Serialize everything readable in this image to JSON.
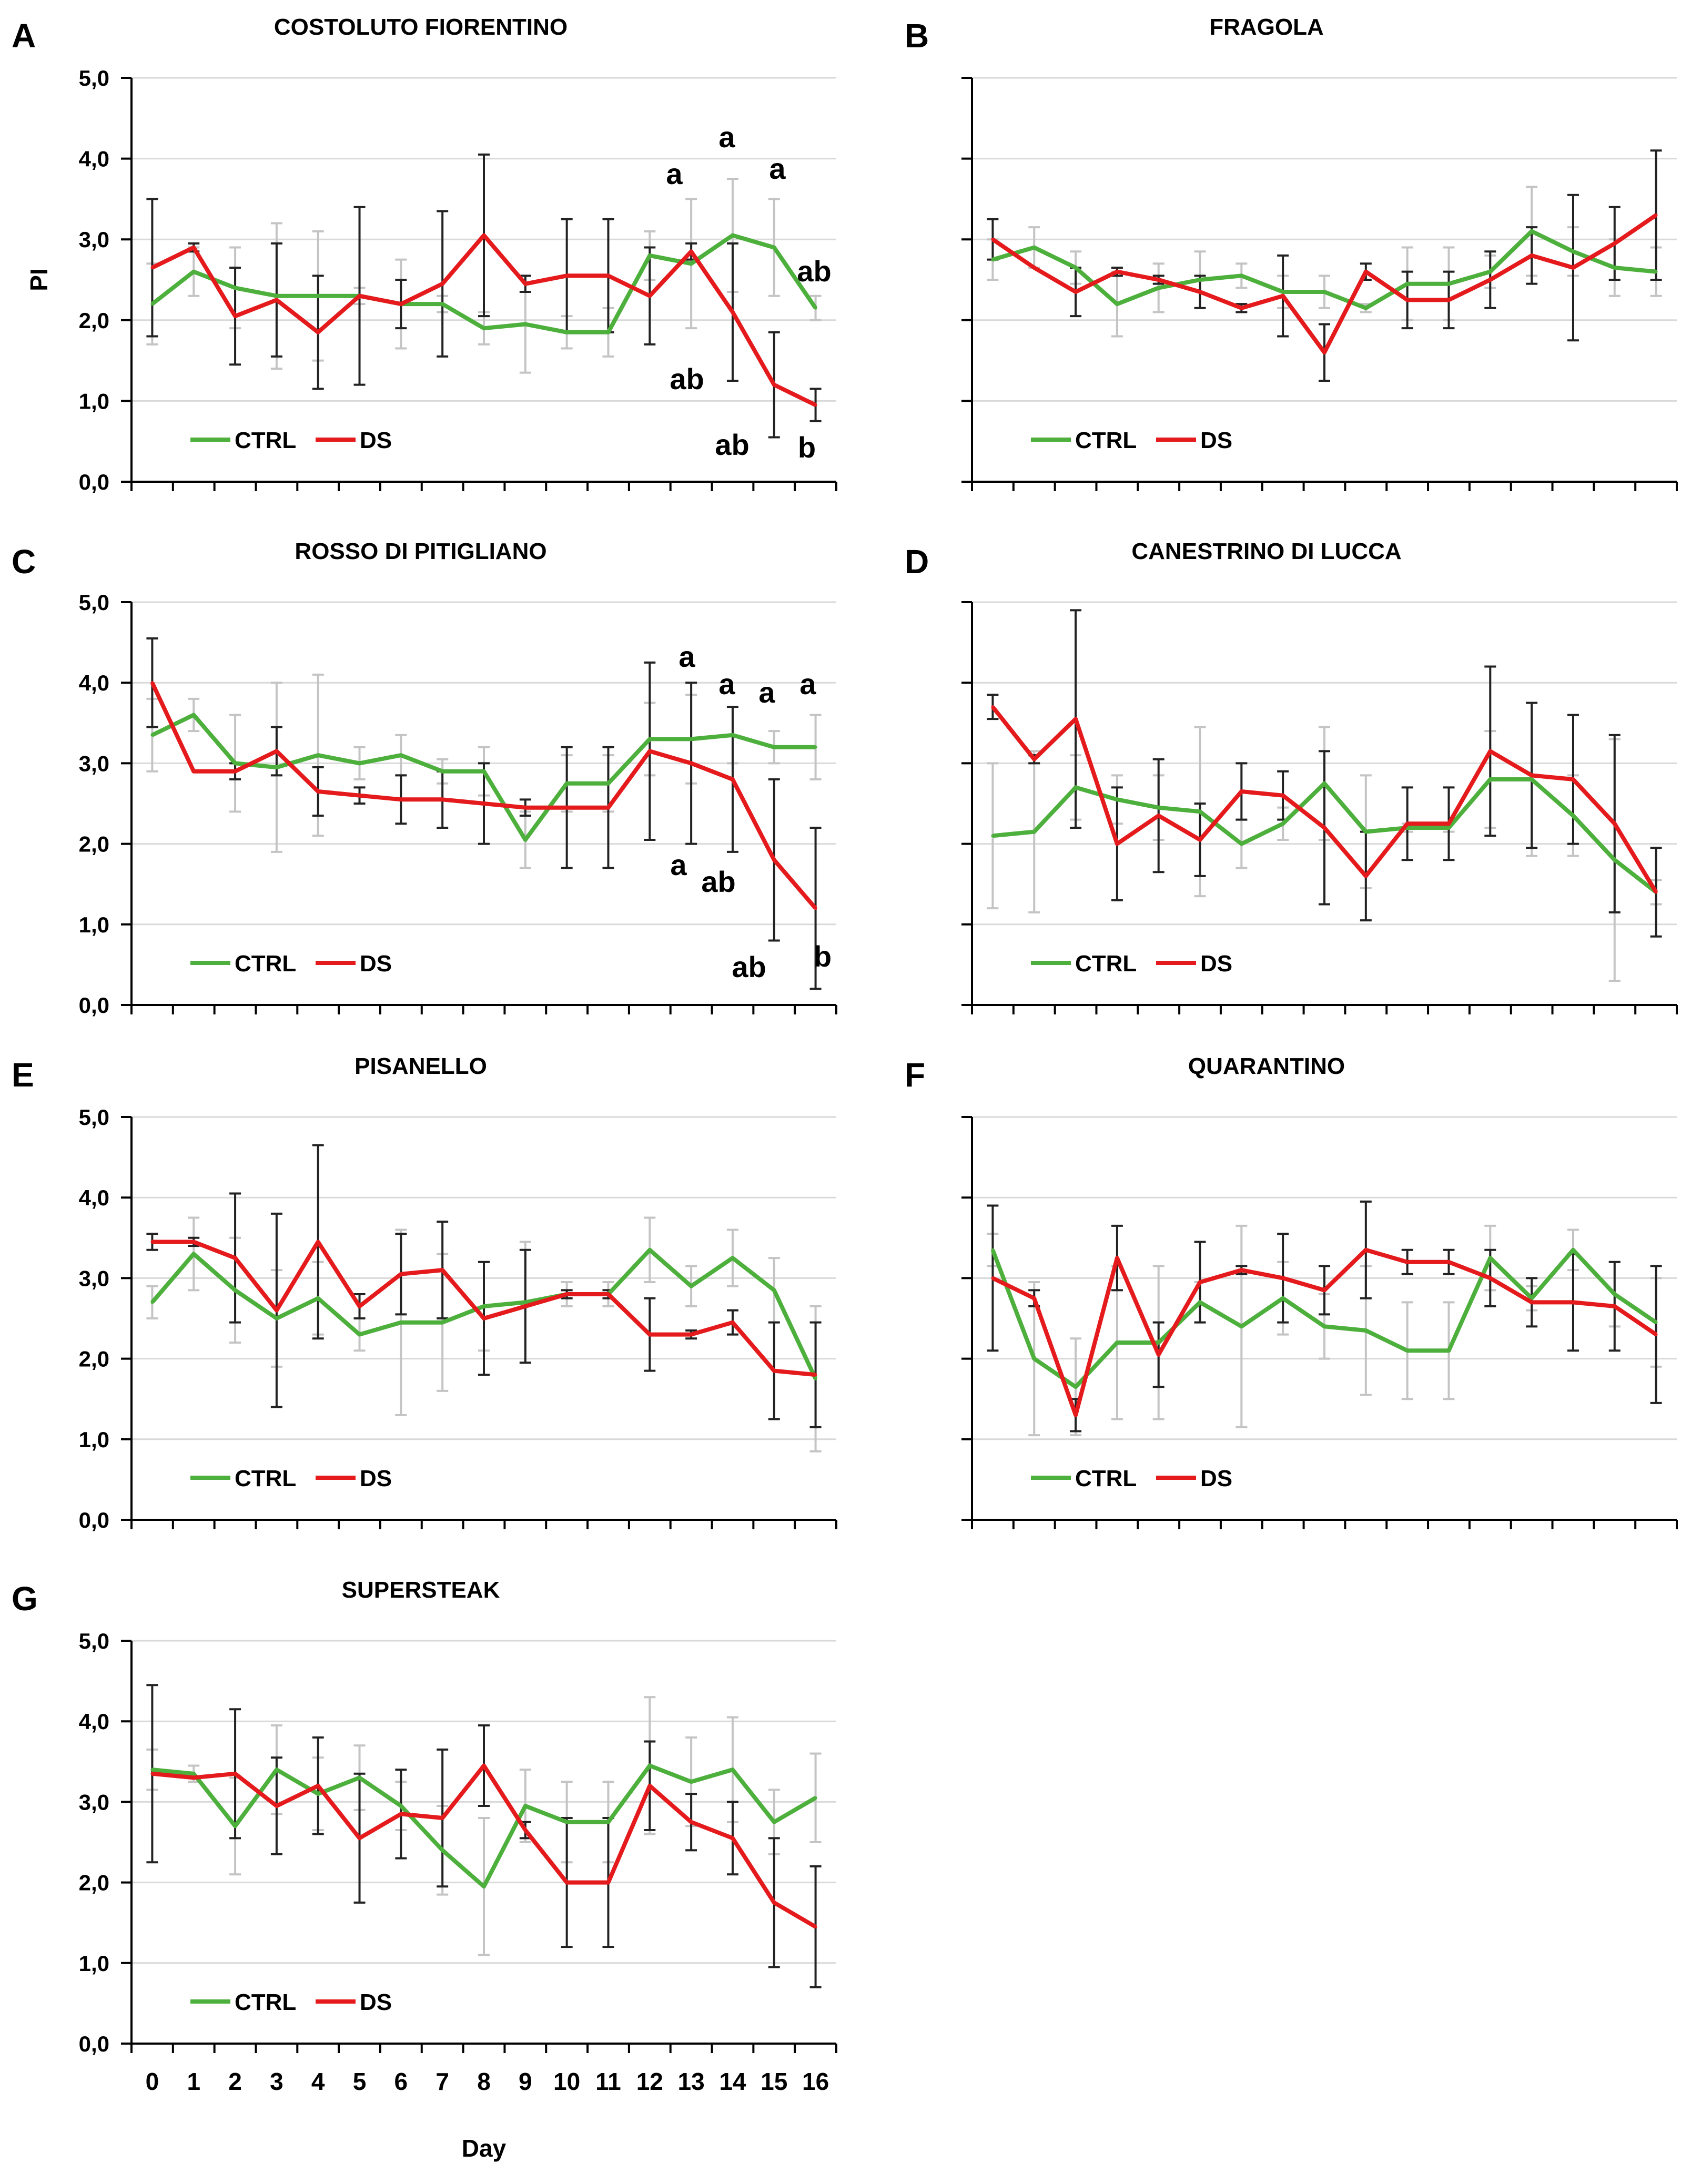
{
  "colors": {
    "ctrl": "#4daf3c",
    "ds": "#e41a1c",
    "ctrl_error": "#c4c4c4",
    "ds_error": "#222222",
    "grid": "#d9d9d9",
    "axis": "#000000"
  },
  "chart_data": [
    {
      "panel": "A",
      "title": "COSTOLUTO FIORENTINO",
      "type": "line",
      "ylabel": "PI",
      "xlabel": "",
      "ylim": [
        0,
        5
      ],
      "y_ticks": [
        "0,0",
        "1,0",
        "2,0",
        "3,0",
        "4,0",
        "5,0"
      ],
      "show_y_tick_labels": true,
      "show_x_tick_labels": false,
      "x": [
        0,
        1,
        2,
        3,
        4,
        5,
        6,
        7,
        8,
        9,
        10,
        11,
        12,
        13,
        14,
        15,
        16
      ],
      "series": [
        {
          "name": "CTRL",
          "values": [
            2.2,
            2.6,
            2.4,
            2.3,
            2.3,
            2.3,
            2.2,
            2.2,
            1.9,
            1.95,
            1.85,
            1.85,
            2.8,
            2.7,
            3.05,
            2.9,
            2.15
          ],
          "errors": [
            0.5,
            0.3,
            0.5,
            0.9,
            0.8,
            0.1,
            0.55,
            0.1,
            0.2,
            0.6,
            0.2,
            0.3,
            0.3,
            0.8,
            0.7,
            0.6,
            0.15
          ]
        },
        {
          "name": "DS",
          "values": [
            2.65,
            2.9,
            2.05,
            2.25,
            1.85,
            2.3,
            2.2,
            2.45,
            3.05,
            2.45,
            2.55,
            2.55,
            2.3,
            2.85,
            2.1,
            1.2,
            0.95
          ],
          "errors": [
            0.85,
            0.05,
            0.6,
            0.7,
            0.7,
            1.1,
            0.3,
            0.9,
            1.0,
            0.1,
            0.7,
            0.7,
            0.6,
            0.1,
            0.85,
            0.65,
            0.2
          ]
        }
      ],
      "legend": [
        "CTRL",
        "DS"
      ],
      "legend_position": "bottom-left",
      "annotations": [
        "a",
        "a",
        "a",
        "ab",
        "ab",
        "ab",
        "b"
      ]
    },
    {
      "panel": "B",
      "title": "FRAGOLA",
      "type": "line",
      "ylabel": "",
      "xlabel": "",
      "ylim": [
        0,
        5
      ],
      "y_ticks": [],
      "show_y_tick_labels": false,
      "show_x_tick_labels": false,
      "x": [
        0,
        1,
        2,
        3,
        4,
        5,
        6,
        7,
        8,
        9,
        10,
        11,
        12,
        13,
        14,
        15,
        16
      ],
      "series": [
        {
          "name": "CTRL",
          "values": [
            2.75,
            2.9,
            2.65,
            2.2,
            2.4,
            2.5,
            2.55,
            2.35,
            2.35,
            2.15,
            2.45,
            2.45,
            2.6,
            3.1,
            2.85,
            2.65,
            2.6
          ],
          "errors": [
            0.25,
            0.25,
            0.2,
            0.4,
            0.3,
            0.35,
            0.15,
            0.2,
            0.2,
            0.05,
            0.45,
            0.45,
            0.2,
            0.55,
            0.3,
            0.35,
            0.3
          ]
        },
        {
          "name": "DS",
          "values": [
            3.0,
            2.65,
            2.35,
            2.6,
            2.5,
            2.35,
            2.15,
            2.3,
            1.6,
            2.6,
            2.25,
            2.25,
            2.5,
            2.8,
            2.65,
            2.95,
            3.3
          ],
          "errors": [
            0.25,
            0.0,
            0.3,
            0.05,
            0.05,
            0.2,
            0.05,
            0.5,
            0.35,
            0.1,
            0.35,
            0.35,
            0.35,
            0.35,
            0.9,
            0.45,
            0.8
          ]
        }
      ],
      "legend": [
        "CTRL",
        "DS"
      ],
      "legend_position": "bottom-left",
      "annotations": []
    },
    {
      "panel": "C",
      "title": "ROSSO DI PITIGLIANO",
      "type": "line",
      "ylabel": "",
      "xlabel": "",
      "ylim": [
        0,
        5
      ],
      "y_ticks": [
        "0,0",
        "1,0",
        "2,0",
        "3,0",
        "4,0",
        "5,0"
      ],
      "show_y_tick_labels": true,
      "show_x_tick_labels": false,
      "x": [
        0,
        1,
        2,
        3,
        4,
        5,
        6,
        7,
        8,
        9,
        10,
        11,
        12,
        13,
        14,
        15,
        16
      ],
      "series": [
        {
          "name": "CTRL",
          "values": [
            3.35,
            3.6,
            3.0,
            2.95,
            3.1,
            3.0,
            3.1,
            2.9,
            2.9,
            2.05,
            2.75,
            2.75,
            3.3,
            3.3,
            3.35,
            3.2,
            3.2
          ],
          "errors": [
            0.45,
            0.2,
            0.6,
            1.05,
            1.0,
            0.2,
            0.25,
            0.15,
            0.3,
            0.35,
            0.35,
            0.35,
            0.45,
            0.55,
            0.35,
            0.2,
            0.4
          ]
        },
        {
          "name": "DS",
          "values": [
            4.0,
            2.9,
            2.9,
            3.15,
            2.65,
            2.6,
            2.55,
            2.55,
            2.5,
            2.45,
            2.45,
            2.45,
            3.15,
            3.0,
            2.8,
            1.8,
            1.2
          ],
          "errors": [
            0.55,
            0.0,
            0.1,
            0.3,
            0.3,
            0.1,
            0.3,
            0.35,
            0.5,
            0.1,
            0.75,
            0.75,
            1.1,
            1.0,
            0.9,
            1.0,
            1.0
          ]
        }
      ],
      "legend": [
        "CTRL",
        "DS"
      ],
      "legend_position": "bottom-left",
      "annotations": [
        "a",
        "a",
        "a",
        "a",
        "a",
        "ab",
        "ab",
        "b"
      ]
    },
    {
      "panel": "D",
      "title": "CANESTRINO DI LUCCA",
      "type": "line",
      "ylabel": "",
      "xlabel": "",
      "ylim": [
        0,
        5
      ],
      "y_ticks": [],
      "show_y_tick_labels": false,
      "show_x_tick_labels": false,
      "x": [
        0,
        1,
        2,
        3,
        4,
        5,
        6,
        7,
        8,
        9,
        10,
        11,
        12,
        13,
        14,
        15,
        16
      ],
      "series": [
        {
          "name": "CTRL",
          "values": [
            2.1,
            2.15,
            2.7,
            2.55,
            2.45,
            2.4,
            2.0,
            2.25,
            2.75,
            2.15,
            2.2,
            2.2,
            2.8,
            2.8,
            2.35,
            1.8,
            1.4
          ],
          "errors": [
            0.9,
            1.0,
            0.4,
            0.3,
            0.4,
            1.05,
            0.3,
            0.2,
            0.7,
            0.7,
            0.05,
            0.05,
            0.6,
            0.95,
            0.5,
            1.5,
            0.15
          ]
        },
        {
          "name": "DS",
          "values": [
            3.7,
            3.05,
            3.55,
            2.0,
            2.35,
            2.05,
            2.65,
            2.6,
            2.2,
            1.6,
            2.25,
            2.25,
            3.15,
            2.85,
            2.8,
            2.25,
            1.4
          ],
          "errors": [
            0.15,
            0.05,
            1.35,
            0.7,
            0.7,
            0.45,
            0.35,
            0.3,
            0.95,
            0.55,
            0.45,
            0.45,
            1.05,
            0.9,
            0.8,
            1.1,
            0.55
          ]
        }
      ],
      "legend": [
        "CTRL",
        "DS"
      ],
      "legend_position": "bottom-left",
      "annotations": []
    },
    {
      "panel": "E",
      "title": "PISANELLO",
      "type": "line",
      "ylabel": "",
      "xlabel": "",
      "ylim": [
        0,
        5
      ],
      "y_ticks": [
        "0,0",
        "1,0",
        "2,0",
        "3,0",
        "4,0",
        "5,0"
      ],
      "show_y_tick_labels": true,
      "show_x_tick_labels": false,
      "x": [
        0,
        1,
        2,
        3,
        4,
        5,
        6,
        7,
        8,
        9,
        10,
        11,
        12,
        13,
        14,
        15,
        16
      ],
      "series": [
        {
          "name": "CTRL",
          "values": [
            2.7,
            3.3,
            2.85,
            2.5,
            2.75,
            2.3,
            2.45,
            2.45,
            2.65,
            2.7,
            2.8,
            2.8,
            3.35,
            2.9,
            3.25,
            2.85,
            1.75
          ],
          "errors": [
            0.2,
            0.45,
            0.65,
            0.6,
            0.45,
            0.2,
            1.15,
            0.85,
            0.55,
            0.75,
            0.15,
            0.15,
            0.4,
            0.25,
            0.35,
            0.4,
            0.9
          ]
        },
        {
          "name": "DS",
          "values": [
            3.45,
            3.45,
            3.25,
            2.6,
            3.45,
            2.65,
            3.05,
            3.1,
            2.5,
            2.65,
            2.8,
            2.8,
            2.3,
            2.3,
            2.45,
            1.85,
            1.8
          ],
          "errors": [
            0.1,
            0.05,
            0.8,
            1.2,
            1.2,
            0.15,
            0.5,
            0.6,
            0.7,
            0.7,
            0.05,
            0.05,
            0.45,
            0.05,
            0.15,
            0.6,
            0.65
          ]
        }
      ],
      "legend": [
        "CTRL",
        "DS"
      ],
      "legend_position": "bottom-left",
      "annotations": []
    },
    {
      "panel": "F",
      "title": "QUARANTINO",
      "type": "line",
      "ylabel": "",
      "xlabel": "",
      "ylim": [
        0,
        5
      ],
      "y_ticks": [],
      "show_y_tick_labels": false,
      "show_x_tick_labels": false,
      "x": [
        0,
        1,
        2,
        3,
        4,
        5,
        6,
        7,
        8,
        9,
        10,
        11,
        12,
        13,
        14,
        15,
        16
      ],
      "series": [
        {
          "name": "CTRL",
          "values": [
            3.35,
            2.0,
            1.65,
            2.2,
            2.2,
            2.7,
            2.4,
            2.75,
            2.4,
            2.35,
            2.1,
            2.1,
            3.25,
            2.75,
            3.35,
            2.8,
            2.45
          ],
          "errors": [
            0.2,
            0.95,
            0.6,
            0.95,
            0.95,
            0.25,
            1.25,
            0.45,
            0.4,
            0.8,
            0.6,
            0.6,
            0.4,
            0.15,
            0.25,
            0.4,
            0.55
          ]
        },
        {
          "name": "DS",
          "values": [
            3.0,
            2.75,
            1.3,
            3.25,
            2.05,
            2.95,
            3.1,
            3.0,
            2.85,
            3.35,
            3.2,
            3.2,
            3.0,
            2.7,
            2.7,
            2.65,
            2.3
          ],
          "errors": [
            0.9,
            0.1,
            0.2,
            0.4,
            0.4,
            0.5,
            0.05,
            0.55,
            0.3,
            0.6,
            0.15,
            0.15,
            0.35,
            0.3,
            0.6,
            0.55,
            0.85
          ]
        }
      ],
      "legend": [
        "CTRL",
        "DS"
      ],
      "legend_position": "bottom-left",
      "annotations": []
    },
    {
      "panel": "G",
      "title": "SUPERSTEAK",
      "type": "line",
      "ylabel": "",
      "xlabel": "Day",
      "ylim": [
        0,
        5
      ],
      "y_ticks": [
        "0,0",
        "1,0",
        "2,0",
        "3,0",
        "4,0",
        "5,0"
      ],
      "show_y_tick_labels": true,
      "show_x_tick_labels": true,
      "x": [
        0,
        1,
        2,
        3,
        4,
        5,
        6,
        7,
        8,
        9,
        10,
        11,
        12,
        13,
        14,
        15,
        16
      ],
      "x_tick_labels": [
        "0",
        "1",
        "2",
        "3",
        "4",
        "5",
        "6",
        "7",
        "8",
        "9",
        "10",
        "11",
        "12",
        "13",
        "14",
        "15",
        "16"
      ],
      "series": [
        {
          "name": "CTRL",
          "values": [
            3.4,
            3.35,
            2.7,
            3.4,
            3.1,
            3.3,
            2.95,
            2.4,
            1.95,
            2.95,
            2.75,
            2.75,
            3.45,
            3.25,
            3.4,
            2.75,
            3.05
          ],
          "errors": [
            0.25,
            0.1,
            0.6,
            0.55,
            0.45,
            0.4,
            0.3,
            0.55,
            0.85,
            0.45,
            0.5,
            0.5,
            0.85,
            0.55,
            0.65,
            0.4,
            0.55
          ]
        },
        {
          "name": "DS",
          "values": [
            3.35,
            3.3,
            3.35,
            2.95,
            3.2,
            2.55,
            2.85,
            2.8,
            3.45,
            2.65,
            2.0,
            2.0,
            3.2,
            2.75,
            2.55,
            1.75,
            1.45
          ],
          "errors": [
            1.1,
            0.0,
            0.8,
            0.6,
            0.6,
            0.8,
            0.55,
            0.85,
            0.5,
            0.1,
            0.8,
            0.8,
            0.55,
            0.35,
            0.45,
            0.8,
            0.75
          ]
        }
      ],
      "legend": [
        "CTRL",
        "DS"
      ],
      "legend_position": "bottom-left",
      "annotations": []
    }
  ]
}
